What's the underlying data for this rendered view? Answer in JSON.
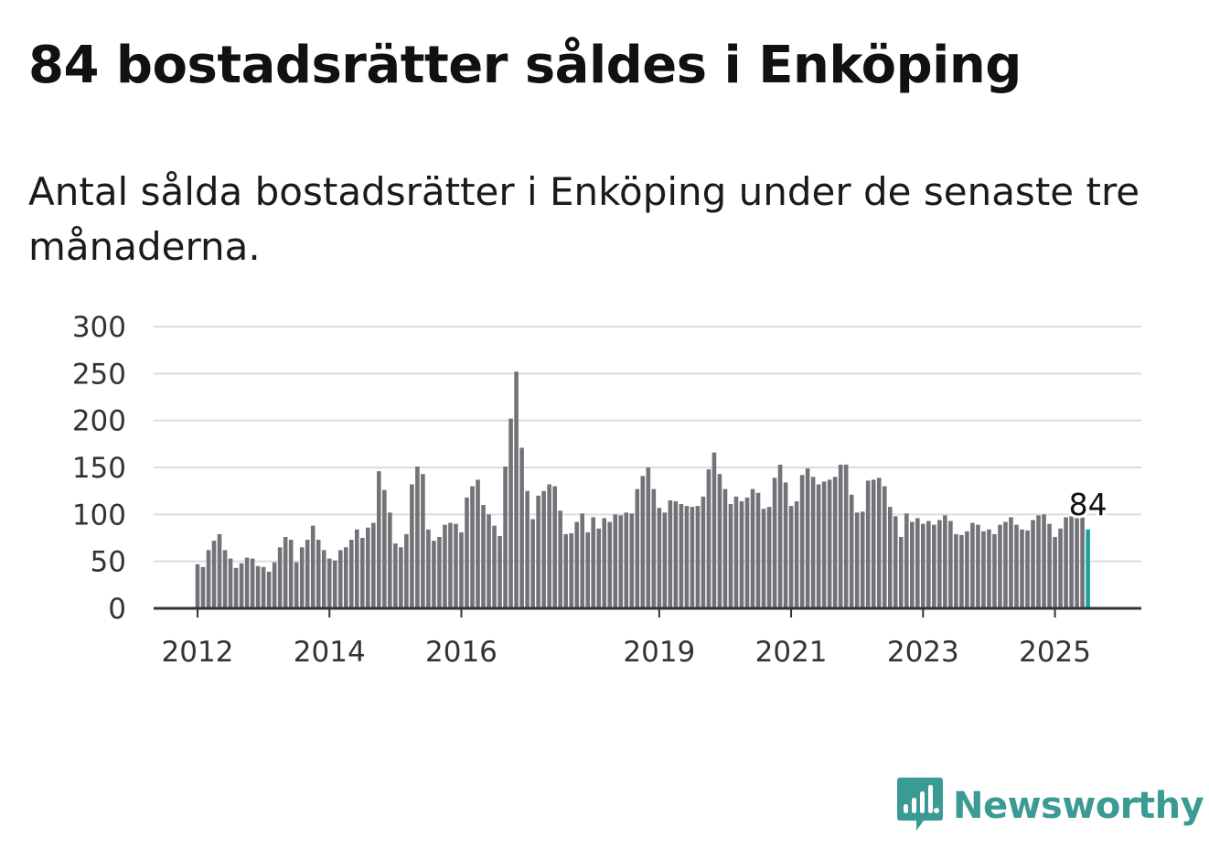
{
  "title": "84 bostadsrätter såldes i Enköping",
  "subtitle": "Antal sålda bostadsrätter i Enköping under de senaste tre månaderna.",
  "brand": {
    "name": "Newsworthy",
    "color": "#3c9a95"
  },
  "chart_data": {
    "type": "bar",
    "title": "84 bostadsrätter såldes i Enköping",
    "subtitle": "Antal sålda bostadsrätter i Enköping under de senaste tre månaderna.",
    "xlabel": "",
    "ylabel": "",
    "ylim": [
      0,
      300
    ],
    "yticks": [
      0,
      50,
      100,
      150,
      200,
      250,
      300
    ],
    "xticks": [
      "2012",
      "2014",
      "2016",
      "2019",
      "2021",
      "2023",
      "2025"
    ],
    "grid": true,
    "legend": "none",
    "bar_color": "#737278",
    "highlight_color": "#17a2a2",
    "highlight_label": "84",
    "start": "2012-01",
    "frequency": "monthly",
    "values": [
      47,
      44,
      62,
      72,
      79,
      62,
      53,
      43,
      48,
      54,
      53,
      45,
      44,
      39,
      49,
      65,
      76,
      73,
      49,
      65,
      73,
      88,
      73,
      62,
      53,
      51,
      62,
      65,
      73,
      84,
      75,
      86,
      91,
      146,
      126,
      102,
      69,
      65,
      79,
      132,
      151,
      143,
      84,
      72,
      76,
      89,
      91,
      90,
      81,
      118,
      130,
      137,
      110,
      100,
      88,
      77,
      151,
      202,
      252,
      171,
      125,
      95,
      120,
      125,
      132,
      130,
      104,
      79,
      80,
      92,
      101,
      81,
      97,
      85,
      96,
      92,
      100,
      99,
      102,
      101,
      127,
      141,
      150,
      127,
      107,
      102,
      115,
      114,
      111,
      109,
      108,
      109,
      119,
      148,
      166,
      143,
      127,
      111,
      119,
      114,
      118,
      127,
      123,
      106,
      108,
      139,
      153,
      134,
      109,
      114,
      142,
      149,
      140,
      132,
      135,
      137,
      140,
      153,
      153,
      121,
      102,
      103,
      136,
      137,
      139,
      130,
      108,
      98,
      76,
      101,
      92,
      96,
      90,
      93,
      89,
      94,
      99,
      93,
      79,
      78,
      82,
      91,
      89,
      82,
      84,
      79,
      89,
      92,
      97,
      89,
      84,
      83,
      94,
      99,
      100,
      90,
      76,
      85,
      97,
      98,
      97,
      97,
      84
    ]
  }
}
